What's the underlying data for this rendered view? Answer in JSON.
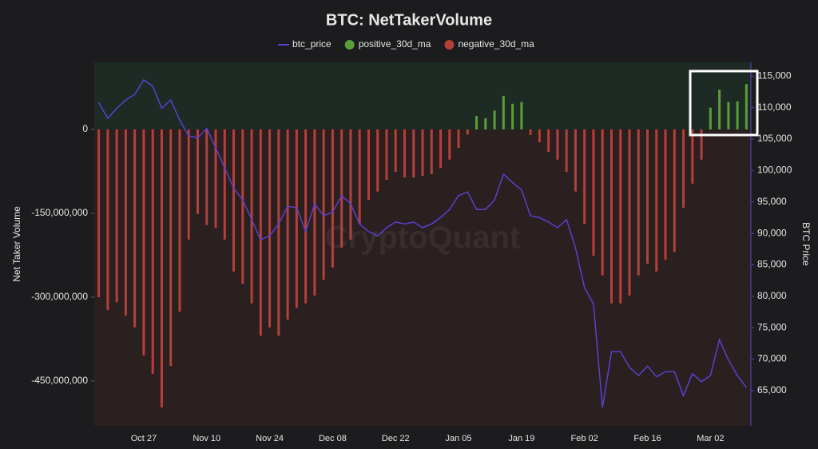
{
  "chart_data": {
    "type": "bar",
    "title": "BTC: NetTakerVolume",
    "watermark": "CryptoQuant",
    "y_label": "Net Taker Volume",
    "y2_label": "BTC Price",
    "categories": [
      null,
      null,
      null,
      null,
      null,
      "Oct 27",
      null,
      null,
      null,
      null,
      null,
      null,
      "Nov 10",
      null,
      null,
      null,
      null,
      null,
      null,
      "Nov 24",
      null,
      null,
      null,
      null,
      null,
      null,
      "Dec 08",
      null,
      null,
      null,
      null,
      null,
      null,
      "Dec 22",
      null,
      null,
      null,
      null,
      null,
      null,
      "Jan 05",
      null,
      null,
      null,
      null,
      null,
      null,
      "Jan 19",
      null,
      null,
      null,
      null,
      null,
      null,
      "Feb 02",
      null,
      null,
      null,
      null,
      null,
      null,
      "Feb 16",
      null,
      null,
      null,
      null,
      null,
      null,
      "Mar 02",
      null,
      null,
      null,
      null
    ],
    "ylim": [
      -530000000,
      120000000
    ],
    "yticks": [
      {
        "value": -450000000,
        "label": "-450,000,000"
      },
      {
        "value": -300000000,
        "label": "-300,000,000"
      },
      {
        "value": -150000000,
        "label": "-150,000,000"
      },
      0
    ],
    "y2lim": [
      59400,
      117200
    ],
    "y2ticks": [
      {
        "value": 65000,
        "label": "65,000"
      },
      {
        "value": 70000,
        "label": "70,000"
      },
      {
        "value": 75000,
        "label": "75,000"
      },
      {
        "value": 80000,
        "label": "80,000"
      },
      {
        "value": 85000,
        "label": "85,000"
      },
      {
        "value": 90000,
        "label": "90,000"
      },
      {
        "value": 95000,
        "label": "95,000"
      },
      {
        "value": 100000,
        "label": "100,000"
      },
      {
        "value": 105000,
        "label": "105,000"
      },
      {
        "value": 110000,
        "label": "110,000"
      },
      {
        "value": 115000,
        "label": "115,000"
      }
    ],
    "series": [
      {
        "name": "btc_price",
        "type": "line",
        "axis": "y2",
        "color": "#5b3fd0",
        "values": [
          110800,
          108300,
          109900,
          111200,
          112100,
          114400,
          113400,
          109900,
          111200,
          108000,
          105500,
          105200,
          106700,
          103600,
          100400,
          97200,
          95300,
          92200,
          89000,
          89600,
          91500,
          94300,
          94100,
          90300,
          94700,
          92800,
          93400,
          96000,
          94700,
          91500,
          90300,
          89600,
          90900,
          91800,
          91500,
          91800,
          90900,
          91500,
          92500,
          93800,
          96000,
          96600,
          93800,
          93800,
          95300,
          99400,
          98100,
          96900,
          92800,
          92500,
          91800,
          90900,
          92200,
          87700,
          81400,
          78800,
          62300,
          71200,
          71200,
          68700,
          67400,
          68900,
          67200,
          68000,
          68000,
          64200,
          67700,
          66400,
          67400,
          73100,
          69900,
          67400,
          65500
        ]
      },
      {
        "name": "positive_30d_ma",
        "type": "bar",
        "color": "#5a9e3a",
        "values": [
          null,
          null,
          null,
          null,
          null,
          null,
          null,
          null,
          null,
          null,
          null,
          null,
          null,
          null,
          null,
          null,
          null,
          null,
          null,
          null,
          null,
          null,
          null,
          null,
          null,
          null,
          null,
          null,
          null,
          null,
          null,
          null,
          null,
          null,
          null,
          null,
          null,
          null,
          null,
          null,
          null,
          null,
          24000000,
          20000000,
          34000000,
          60000000,
          46000000,
          49000000,
          null,
          null,
          null,
          null,
          null,
          null,
          null,
          null,
          null,
          null,
          null,
          null,
          null,
          null,
          null,
          null,
          null,
          null,
          null,
          null,
          39000000,
          71000000,
          49000000,
          50000000,
          81000000
        ]
      },
      {
        "name": "negative_30d_ma",
        "type": "bar",
        "color": "#b5403a",
        "values": [
          -300000000,
          -323000000,
          -309000000,
          -333000000,
          -354000000,
          -404000000,
          -437000000,
          -497000000,
          -423000000,
          -326000000,
          -197000000,
          -151000000,
          -171000000,
          -176000000,
          -197000000,
          -254000000,
          -276000000,
          -311000000,
          -369000000,
          -354000000,
          -369000000,
          -340000000,
          -319000000,
          -311000000,
          -297000000,
          -269000000,
          -247000000,
          -211000000,
          -197000000,
          -169000000,
          -126000000,
          -111000000,
          -90000000,
          -76000000,
          -86000000,
          -86000000,
          -83000000,
          -80000000,
          -69000000,
          -54000000,
          -33000000,
          -9000000,
          null,
          null,
          null,
          null,
          null,
          null,
          -10000000,
          -23000000,
          -40000000,
          -54000000,
          -76000000,
          -111000000,
          -169000000,
          -226000000,
          -261000000,
          -311000000,
          -311000000,
          -297000000,
          -261000000,
          -240000000,
          -254000000,
          -233000000,
          -219000000,
          -140000000,
          -97000000,
          -54000000,
          null,
          null,
          null,
          null,
          null
        ]
      }
    ]
  }
}
